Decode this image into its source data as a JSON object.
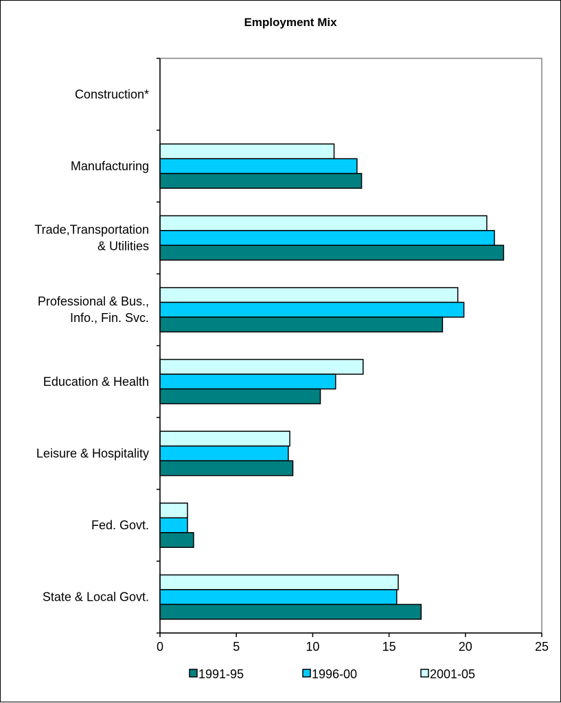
{
  "chart_data": {
    "type": "bar",
    "orientation": "horizontal",
    "title": "Employment Mix",
    "xlabel": "",
    "ylabel": "",
    "xlim": [
      0,
      25
    ],
    "xticks": [
      0,
      5,
      10,
      15,
      20,
      25
    ],
    "grid": false,
    "legend_position": "bottom",
    "categories": [
      "Construction*",
      "Manufacturing",
      "Trade,Transportation & Utilities",
      "Professional & Bus., Info., Fin. Svc.",
      "Education & Health",
      "Leisure & Hospitality",
      "Fed. Govt.",
      "State & Local Govt."
    ],
    "category_lines": [
      [
        "Construction*"
      ],
      [
        "Manufacturing"
      ],
      [
        "Trade,Transportation",
        "& Utilities"
      ],
      [
        "Professional & Bus.,",
        "Info., Fin. Svc."
      ],
      [
        "Education & Health"
      ],
      [
        "Leisure & Hospitality"
      ],
      [
        "Fed. Govt."
      ],
      [
        "State & Local Govt."
      ]
    ],
    "series": [
      {
        "name": "1991-95",
        "color": "#008080",
        "values": [
          null,
          13.2,
          22.5,
          18.5,
          10.5,
          8.7,
          2.2,
          17.1
        ]
      },
      {
        "name": "1996-00",
        "color": "#00CCFF",
        "values": [
          null,
          12.9,
          21.9,
          19.9,
          11.5,
          8.4,
          1.8,
          15.5
        ]
      },
      {
        "name": "2001-05",
        "color": "#CCFFFF",
        "values": [
          null,
          11.4,
          21.4,
          19.5,
          13.3,
          8.5,
          1.8,
          15.6
        ]
      }
    ]
  }
}
